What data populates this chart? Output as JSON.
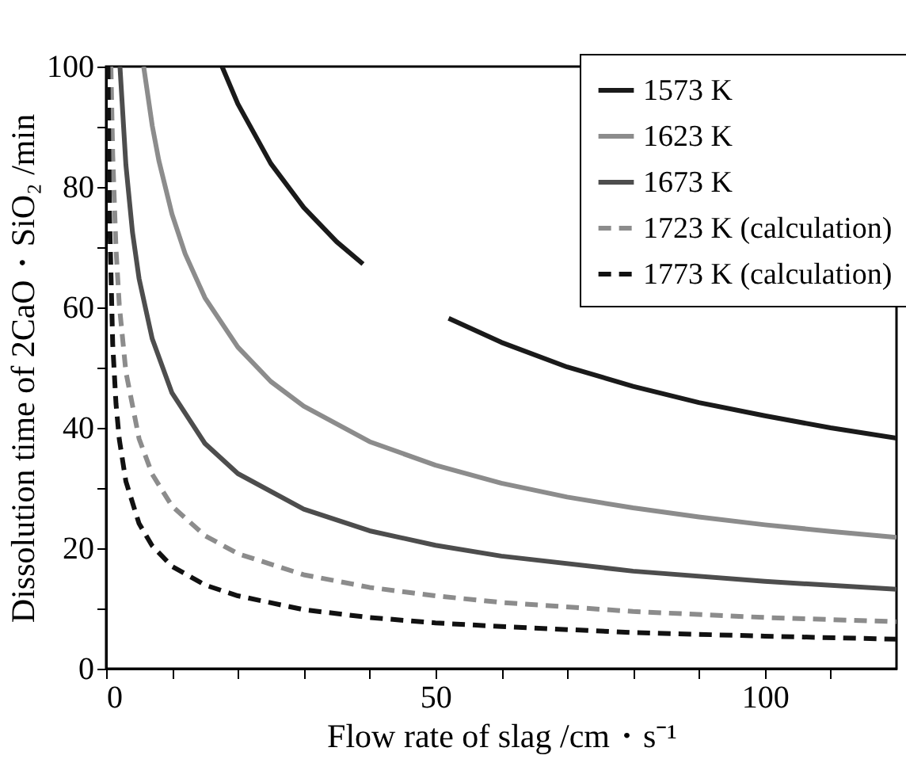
{
  "chart_data": {
    "type": "line",
    "xlabel": "Flow rate of slag /cm・s⁻¹",
    "ylabel": "Dissolution time of 2CaO・SiO₂ /min",
    "xlim": [
      0,
      120
    ],
    "ylim": [
      0,
      100
    ],
    "xticks": [
      0,
      {
        "value": 10,
        "label": null
      },
      {
        "value": 20,
        "label": null
      },
      {
        "value": 30,
        "label": null
      },
      {
        "value": 40,
        "label": null
      },
      50,
      {
        "value": 60,
        "label": null
      },
      {
        "value": 70,
        "label": null
      },
      {
        "value": 80,
        "label": null
      },
      {
        "value": 90,
        "label": null
      },
      100,
      {
        "value": 110,
        "label": null
      }
    ],
    "yticks": [
      0,
      {
        "value": 10,
        "label": null
      },
      20,
      {
        "value": 30,
        "label": null
      },
      40,
      {
        "value": 50,
        "label": null
      },
      60,
      {
        "value": 70,
        "label": null
      },
      80,
      {
        "value": 90,
        "label": null
      },
      100
    ],
    "grid": false,
    "legend": "top right",
    "marker": "none",
    "series": [
      {
        "name": "1573 K",
        "color": "#1a1a1a",
        "line_style": "solid",
        "x": [
          17.6,
          20,
          25,
          30,
          35,
          39,
          45,
          52,
          60,
          70,
          80,
          90,
          100,
          110,
          120
        ],
        "values": [
          100,
          93.8,
          83.9,
          76.6,
          70.9,
          67.2,
          null,
          58.2,
          54.2,
          50.1,
          46.9,
          44.2,
          42.0,
          40.0,
          38.3
        ]
      },
      {
        "name": "1623 K",
        "color": "#8c8c8c",
        "line_style": "solid",
        "x": [
          5.7,
          7,
          8,
          10,
          12,
          15,
          20,
          25,
          30,
          40,
          50,
          60,
          70,
          80,
          90,
          100,
          110,
          120
        ],
        "values": [
          100,
          90.2,
          84.4,
          75.5,
          68.9,
          61.6,
          53.4,
          47.7,
          43.6,
          37.7,
          33.8,
          30.8,
          28.5,
          26.7,
          25.2,
          23.9,
          22.8,
          21.8
        ]
      },
      {
        "name": "1673 K",
        "color": "#4d4d4d",
        "line_style": "solid",
        "x": [
          2.1,
          3,
          4,
          5,
          7,
          10,
          15,
          20,
          30,
          40,
          50,
          60,
          80,
          100,
          120
        ],
        "values": [
          100,
          83.7,
          72.5,
          64.8,
          54.8,
          45.8,
          37.4,
          32.4,
          26.5,
          22.9,
          20.5,
          18.7,
          16.2,
          14.5,
          13.2
        ]
      },
      {
        "name": "1723 K (calculation)",
        "color": "#8c8c8c",
        "line_style": "dashed",
        "x": [
          0.73,
          1,
          1.5,
          2,
          3,
          5,
          7,
          10,
          15,
          20,
          30,
          40,
          50,
          60,
          80,
          100,
          120
        ],
        "values": [
          100,
          85.4,
          69.7,
          60.4,
          49.3,
          38.2,
          32.3,
          27.0,
          22.1,
          19.1,
          15.6,
          13.5,
          12.1,
          11.0,
          9.5,
          8.5,
          7.8
        ]
      },
      {
        "name": "1773 K (calculation)",
        "color": "#111111",
        "line_style": "dashed",
        "x": [
          0.29,
          0.5,
          1,
          1.5,
          2,
          3,
          5,
          7,
          10,
          15,
          20,
          30,
          40,
          50,
          60,
          80,
          100,
          120
        ],
        "values": [
          100,
          76.2,
          53.9,
          44.0,
          38.1,
          31.1,
          24.1,
          20.4,
          17.0,
          13.9,
          12.1,
          9.8,
          8.5,
          7.6,
          7.0,
          6.0,
          5.4,
          4.9
        ]
      }
    ]
  }
}
